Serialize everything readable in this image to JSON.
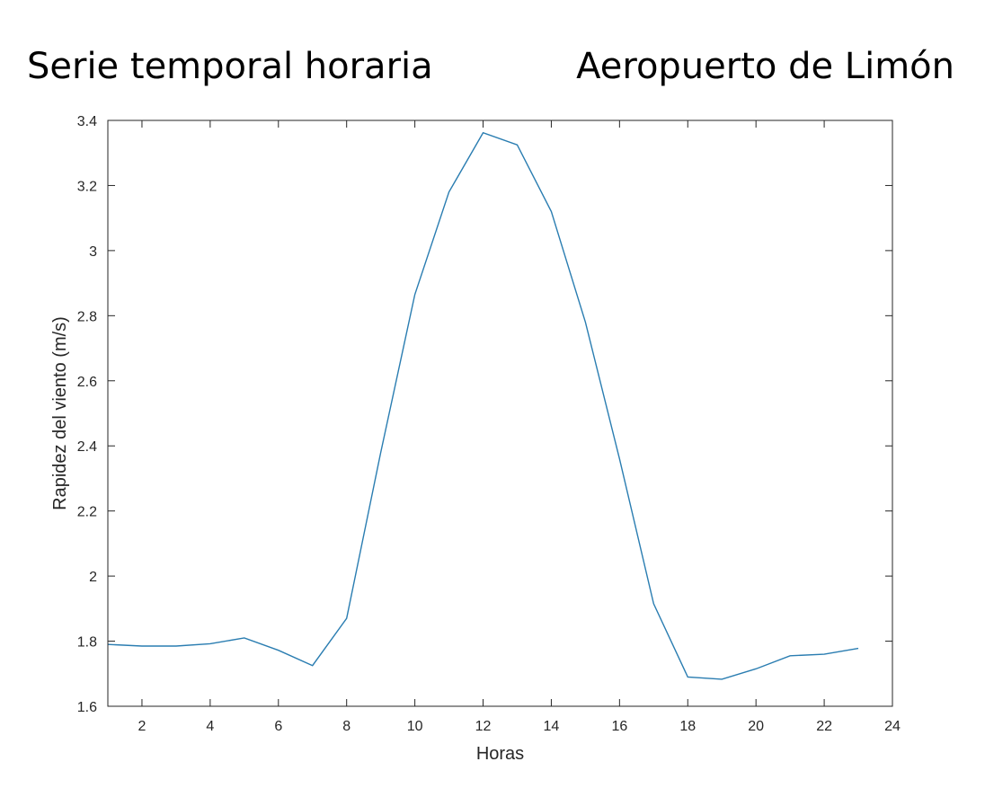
{
  "header": {
    "left_title": "Serie temporal horaria",
    "right_title": "Aeropuerto de Limón"
  },
  "chart_data": {
    "type": "line",
    "xlabel": "Horas",
    "ylabel": "Rapidez del viento (m/s)",
    "xlim": [
      1,
      24
    ],
    "ylim": [
      1.6,
      3.4
    ],
    "xticks": [
      2,
      4,
      6,
      8,
      10,
      12,
      14,
      16,
      18,
      20,
      22,
      24
    ],
    "yticks": [
      1.6,
      1.8,
      2,
      2.2,
      2.4,
      2.6,
      2.8,
      3,
      3.2,
      3.4
    ],
    "grid": false,
    "line_color": "#2a7db1",
    "x": [
      1,
      2,
      3,
      4,
      5,
      6,
      7,
      8,
      9,
      10,
      11,
      12,
      13,
      14,
      15,
      16,
      17,
      18,
      19,
      20,
      21,
      22,
      23
    ],
    "y": [
      1.79,
      1.785,
      1.785,
      1.792,
      1.81,
      1.772,
      1.725,
      1.87,
      2.38,
      2.865,
      3.18,
      3.362,
      3.325,
      3.12,
      2.78,
      2.36,
      1.915,
      1.69,
      1.683,
      1.715,
      1.755,
      1.76,
      1.778
    ]
  }
}
